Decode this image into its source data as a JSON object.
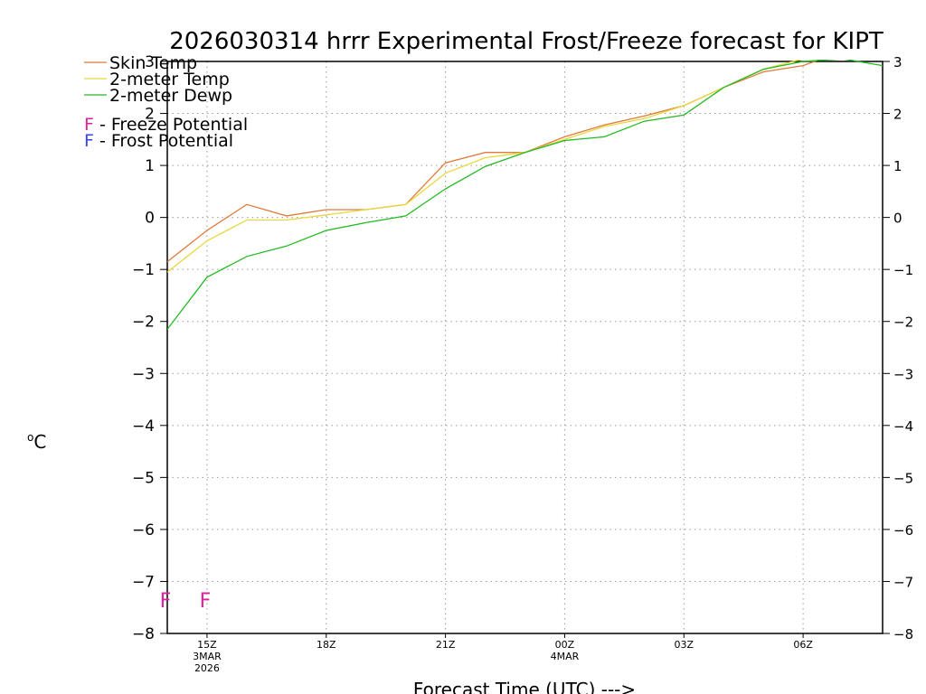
{
  "chart_data": {
    "type": "line",
    "title": "2026030314 hrrr Experimental Frost/Freeze forecast for KIPT",
    "xlabel": "Forecast Time (UTC) --->",
    "ylabel_unit": "C",
    "ylabel_degree": "o",
    "ylim": [
      -8,
      3
    ],
    "xlim": [
      14,
      32
    ],
    "grid": true,
    "yticks": [
      -8,
      -7,
      -6,
      -5,
      -4,
      -3,
      -2,
      -1,
      0,
      1,
      2,
      3
    ],
    "xticks": [
      {
        "hour": 15,
        "label": "15Z",
        "sub1": "3MAR",
        "sub2": "2026"
      },
      {
        "hour": 18,
        "label": "18Z",
        "sub1": "",
        "sub2": ""
      },
      {
        "hour": 21,
        "label": "21Z",
        "sub1": "",
        "sub2": ""
      },
      {
        "hour": 24,
        "label": "00Z",
        "sub1": "4MAR",
        "sub2": ""
      },
      {
        "hour": 27,
        "label": "03Z",
        "sub1": "",
        "sub2": ""
      },
      {
        "hour": 30,
        "label": "06Z",
        "sub1": "",
        "sub2": ""
      }
    ],
    "x": [
      14,
      15,
      16,
      17,
      18,
      19,
      20,
      21,
      22,
      23,
      24,
      25,
      26,
      27,
      28,
      29,
      30,
      31,
      32
    ],
    "series": [
      {
        "name": "Skin Temp",
        "color": "#e07b39",
        "values": [
          -0.85,
          -0.25,
          0.25,
          0.03,
          0.15,
          0.15,
          0.25,
          1.05,
          1.25,
          1.25,
          1.55,
          1.78,
          1.95,
          2.15,
          2.5,
          2.8,
          2.92,
          3.2,
          3.1
        ]
      },
      {
        "name": "2-meter Temp",
        "color": "#e8d83c",
        "values": [
          -1.05,
          -0.45,
          -0.05,
          -0.05,
          0.05,
          0.15,
          0.25,
          0.85,
          1.15,
          1.25,
          1.5,
          1.75,
          1.9,
          2.15,
          2.5,
          2.85,
          3.05,
          3.2,
          3.05
        ]
      },
      {
        "name": "2-meter Dewp",
        "color": "#22bb22",
        "values": [
          -2.15,
          -1.15,
          -0.75,
          -0.55,
          -0.25,
          -0.1,
          0.03,
          0.55,
          0.98,
          1.25,
          1.48,
          1.55,
          1.85,
          1.97,
          2.5,
          2.85,
          3.0,
          3.05,
          2.92
        ]
      }
    ],
    "freeze_markers": {
      "letter": "F",
      "color": "#dd2299",
      "hours": [
        14,
        15
      ]
    },
    "legend": {
      "position": "top-left",
      "freeze_letter": "F",
      "freeze_text": " - Freeze Potential",
      "freeze_color": "#dd2299",
      "frost_letter": "F",
      "frost_text": " - Frost Potential",
      "frost_color": "#3344ee"
    }
  }
}
